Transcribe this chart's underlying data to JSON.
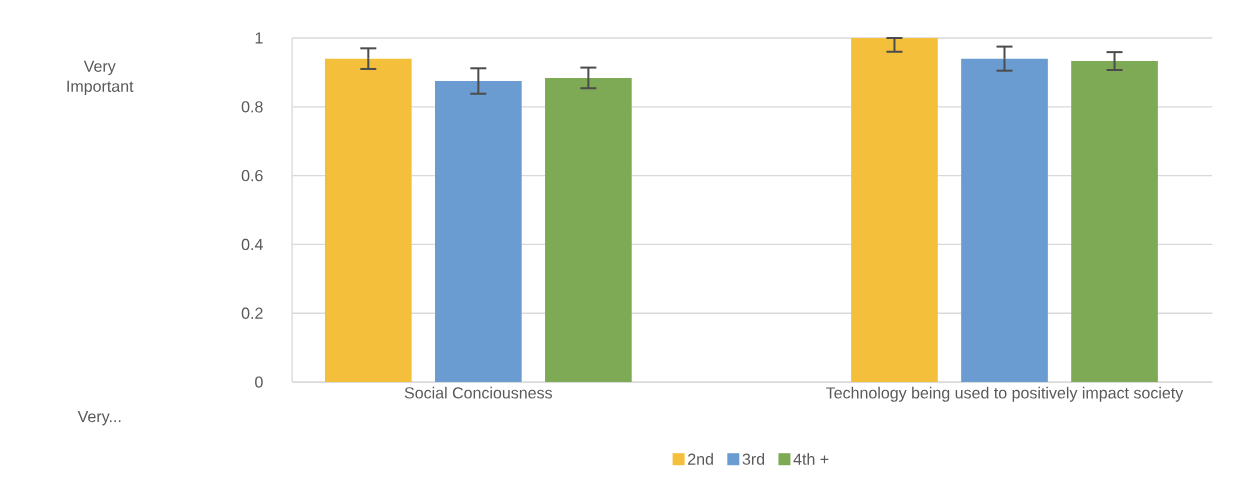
{
  "chart_data": {
    "type": "bar",
    "categories": [
      "Social Conciousness",
      "Technology being used to positively impact society"
    ],
    "series": [
      {
        "name": "2nd",
        "color": "#f4bf3a",
        "values": [
          0.94,
          1.0
        ],
        "errors": [
          0.03,
          [
            0.96,
            1.0
          ]
        ]
      },
      {
        "name": "3rd",
        "color": "#6a9bd1",
        "values": [
          0.875,
          0.94
        ],
        "errors": [
          0.037,
          0.035
        ]
      },
      {
        "name": "4th +",
        "color": "#7faa55",
        "values": [
          0.884,
          0.933
        ],
        "errors": [
          0.03,
          0.026
        ]
      }
    ],
    "ylim": [
      0,
      1
    ],
    "yticks": [
      0,
      0.2,
      0.4,
      0.6,
      0.8,
      1
    ],
    "annotations": [
      "Very Important",
      "Very..."
    ],
    "grid": "y",
    "legend": "bottom"
  }
}
